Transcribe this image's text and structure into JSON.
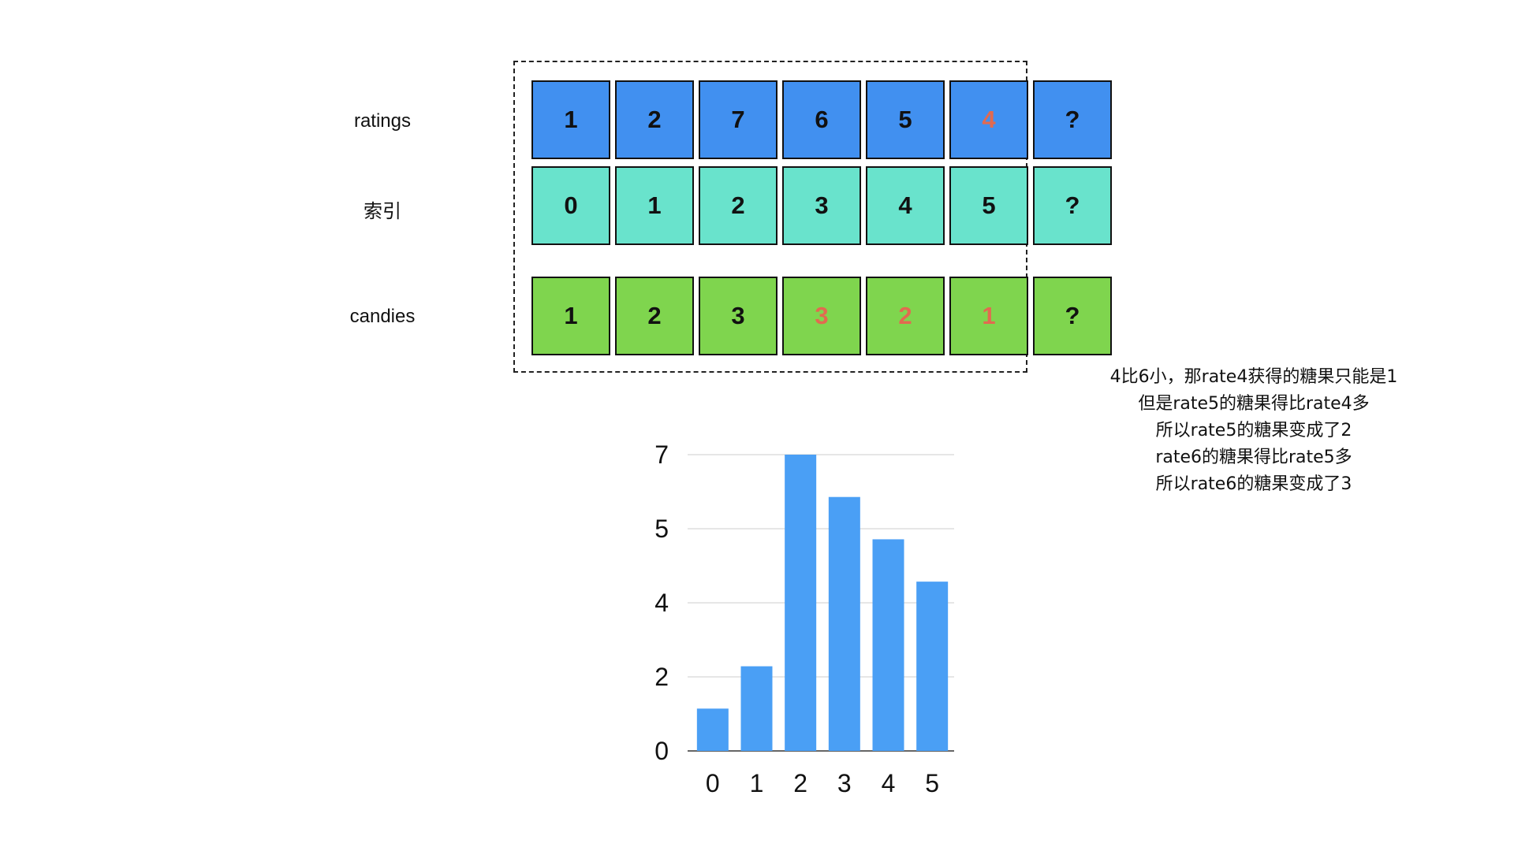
{
  "rows": {
    "ratings": {
      "label": "ratings",
      "values": [
        "1",
        "2",
        "7",
        "6",
        "5",
        "4",
        "?"
      ],
      "red": [
        5
      ]
    },
    "index": {
      "label": "索引",
      "values": [
        "0",
        "1",
        "2",
        "3",
        "4",
        "5",
        "?"
      ],
      "red": []
    },
    "candies": {
      "label": "candies",
      "values": [
        "1",
        "2",
        "3",
        "3",
        "2",
        "1",
        "?"
      ],
      "red": [
        3,
        4,
        5
      ]
    }
  },
  "colors": {
    "ratings": "#4190f0",
    "index": "#69e3cc",
    "candies": "#7fd54e",
    "highlight_text": "#e26a50",
    "bar": "#4a9ff5"
  },
  "annotation": [
    "4比6小，那rate4获得的糖果只能是1",
    "但是rate5的糖果得比rate4多",
    "所以rate5的糖果变成了2",
    "rate6的糖果得比rate5多",
    "所以rate6的糖果变成了3"
  ],
  "chart_data": {
    "type": "bar",
    "categories": [
      "0",
      "1",
      "2",
      "3",
      "4",
      "5"
    ],
    "values": [
      1.0,
      2.0,
      7.0,
      6.0,
      5.0,
      4.0
    ],
    "y_tick_labels": [
      "0",
      "2",
      "4",
      "5",
      "7"
    ],
    "grid": true
  }
}
